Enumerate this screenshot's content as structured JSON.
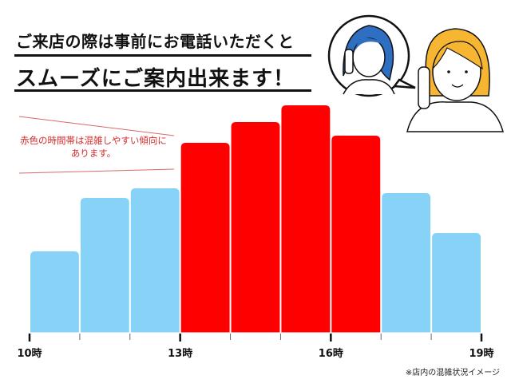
{
  "header": {
    "line1": "ご来店の際は事前にお電話いただくと",
    "line2": "スムーズにご案内出来ます！"
  },
  "annotation": {
    "line1": "赤色の時間帯は混雑しやすい傾向に",
    "line2": "あります。"
  },
  "footnote": "※店内の混雑状況イメージ",
  "illustration": "two-women-on-phone",
  "chart_data": {
    "type": "bar",
    "categories": [
      "10-11時",
      "11-12時",
      "12-13時",
      "13-14時",
      "14-15時",
      "15-16時",
      "16-17時",
      "17-18時",
      "18-19時"
    ],
    "values": [
      102,
      169,
      181,
      238,
      264,
      285,
      247,
      175,
      125
    ],
    "busy": [
      false,
      false,
      false,
      true,
      true,
      true,
      true,
      false,
      false
    ],
    "tick_labels": [
      "10時",
      "13時",
      "16時",
      "19時"
    ],
    "tick_hours": [
      10,
      13,
      16,
      19
    ],
    "x_range": [
      10,
      19
    ],
    "colors": {
      "normal": "#87d3f8",
      "busy": "#ff0000"
    },
    "grid": false,
    "legend": "none"
  }
}
